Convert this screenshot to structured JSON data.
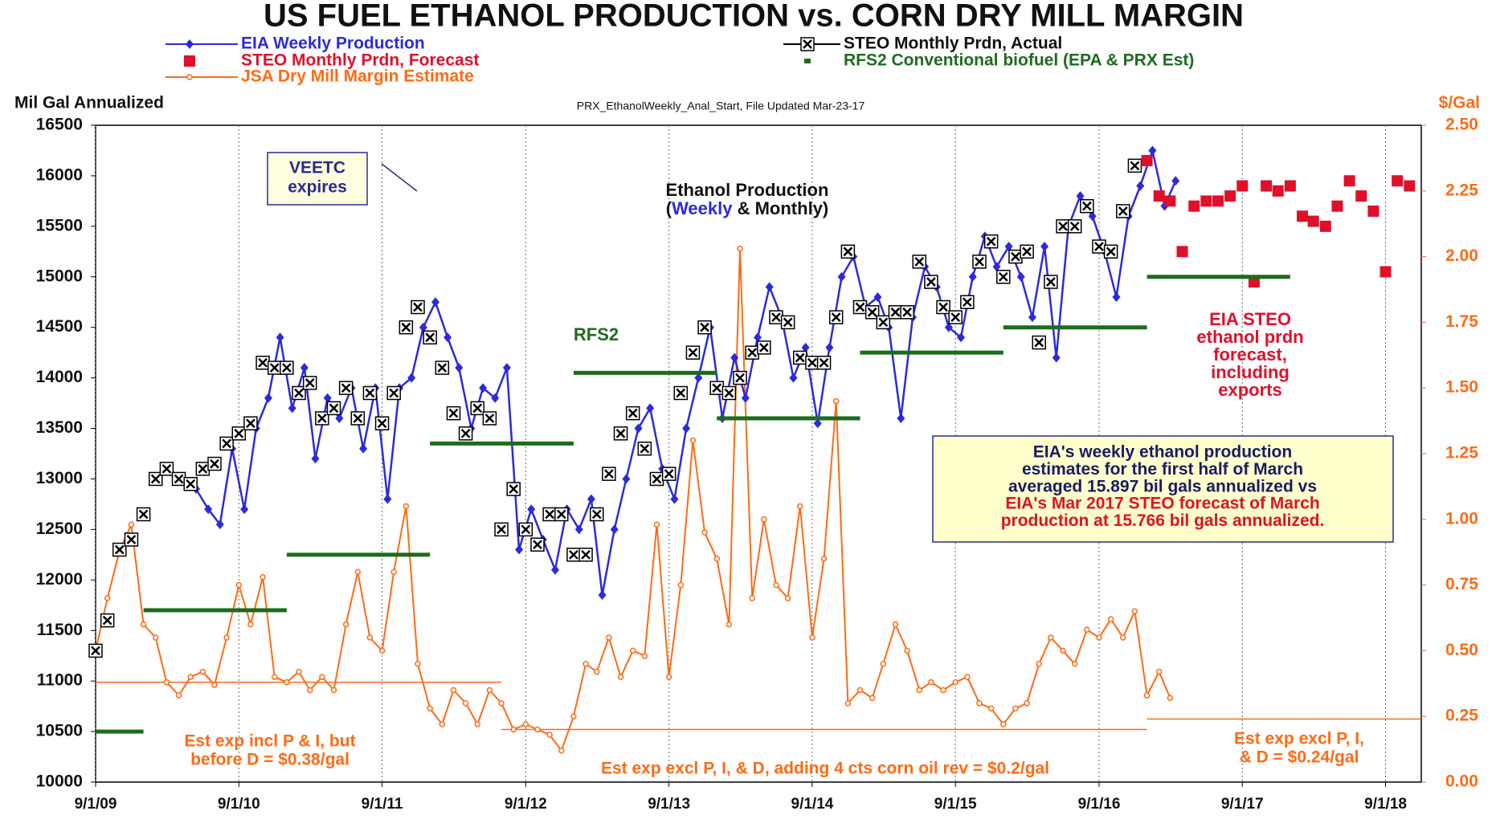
{
  "chart_data": {
    "type": "line",
    "title": "US FUEL ETHANOL PRODUCTION vs. CORN DRY MILL MARGIN",
    "subtitle": "PRX_EthanolWeekly_Anal_Start, File Updated Mar-23-17",
    "y_label": "Mil Gal Annualized",
    "y2_label": "$/Gal",
    "legend": "top",
    "grid": "x",
    "xlim": [
      "2009-09-01",
      "2018-12-01"
    ],
    "xticks": [
      {
        "value": "2009-09-01",
        "label": "9/1/09"
      },
      {
        "value": "2010-09-01",
        "label": "9/1/10"
      },
      {
        "value": "2011-09-01",
        "label": "9/1/11"
      },
      {
        "value": "2012-09-01",
        "label": "9/1/12"
      },
      {
        "value": "2013-09-01",
        "label": "9/1/13"
      },
      {
        "value": "2014-09-01",
        "label": "9/1/14"
      },
      {
        "value": "2015-09-01",
        "label": "9/1/15"
      },
      {
        "value": "2016-09-01",
        "label": "9/1/16"
      },
      {
        "value": "2017-09-01",
        "label": "9/1/17"
      },
      {
        "value": "2018-09-01",
        "label": "9/1/18"
      }
    ],
    "ylim": [
      10000,
      16500
    ],
    "yticks": [
      10000,
      10500,
      11000,
      11500,
      12000,
      12500,
      13000,
      13500,
      14000,
      14500,
      15000,
      15500,
      16000,
      16500
    ],
    "y2lim": [
      0,
      2.5
    ],
    "y2ticks": [
      {
        "value": 0,
        "label": "0.00"
      },
      0.25,
      {
        "value": 0.5,
        "label": "0.50"
      },
      0.75,
      {
        "value": 1,
        "label": "1.00"
      },
      1.25,
      {
        "value": 1.5,
        "label": "1.50"
      },
      1.75,
      {
        "value": 2,
        "label": "2.00"
      },
      2.25,
      {
        "value": 2.5,
        "label": "2.50"
      }
    ],
    "y2_color": "#ff6a13",
    "series": [
      {
        "name": "EIA Weekly Production",
        "color": "#2b2bd9",
        "marker": "diamond",
        "line": true,
        "x": [
          "2010-05-15",
          "2010-06-15",
          "2010-07-15",
          "2010-08-15",
          "2010-09-15",
          "2010-10-15",
          "2010-11-15",
          "2010-12-15",
          "2011-01-15",
          "2011-02-15",
          "2011-03-15",
          "2011-04-15",
          "2011-05-15",
          "2011-06-15",
          "2011-07-15",
          "2011-08-15",
          "2011-09-15",
          "2011-10-15",
          "2011-11-15",
          "2011-12-15",
          "2012-01-15",
          "2012-02-15",
          "2012-03-15",
          "2012-04-15",
          "2012-05-15",
          "2012-06-15",
          "2012-07-15",
          "2012-08-15",
          "2012-09-15",
          "2012-10-15",
          "2012-11-15",
          "2012-12-15",
          "2013-01-15",
          "2013-02-15",
          "2013-03-15",
          "2013-04-15",
          "2013-05-15",
          "2013-06-15",
          "2013-07-15",
          "2013-08-15",
          "2013-09-15",
          "2013-10-15",
          "2013-11-15",
          "2013-12-15",
          "2014-01-15",
          "2014-02-15",
          "2014-03-15",
          "2014-04-15",
          "2014-05-15",
          "2014-06-15",
          "2014-07-15",
          "2014-08-15",
          "2014-09-15",
          "2014-10-15",
          "2014-11-15",
          "2014-12-15",
          "2015-01-15",
          "2015-02-15",
          "2015-03-15",
          "2015-04-15",
          "2015-05-15",
          "2015-06-15",
          "2015-07-15",
          "2015-08-15",
          "2015-09-15",
          "2015-10-15",
          "2015-11-15",
          "2015-12-15",
          "2016-01-15",
          "2016-02-15",
          "2016-03-15",
          "2016-04-15",
          "2016-05-15",
          "2016-06-15",
          "2016-07-15",
          "2016-08-15",
          "2016-09-15",
          "2016-10-15",
          "2016-11-15",
          "2016-12-15",
          "2017-01-15",
          "2017-02-15",
          "2017-03-15"
        ],
        "values": [
          12900,
          12700,
          12550,
          13300,
          12700,
          13500,
          13800,
          14400,
          13700,
          14100,
          13200,
          13800,
          13600,
          13900,
          13300,
          13900,
          12800,
          13900,
          14000,
          14500,
          14750,
          14400,
          14100,
          13500,
          13900,
          13800,
          14100,
          12300,
          12700,
          12400,
          12100,
          12700,
          12500,
          12800,
          11850,
          12500,
          13000,
          13500,
          13700,
          13100,
          12800,
          13500,
          14000,
          14500,
          13600,
          14200,
          13800,
          14400,
          14900,
          14600,
          14000,
          14300,
          13550,
          14300,
          15000,
          15200,
          14700,
          14800,
          14500,
          13600,
          14600,
          15100,
          14900,
          14500,
          14400,
          15000,
          15400,
          15100,
          15300,
          15000,
          14600,
          15300,
          14200,
          15500,
          15800,
          15600,
          15250,
          14800,
          15600,
          15900,
          16250,
          15700,
          15950
        ]
      },
      {
        "name": "STEO Monthly Prdn, Actual",
        "color": "#000000",
        "marker": "xbox",
        "line": false,
        "x": [
          "2009-09-01",
          "2009-10-01",
          "2009-11-01",
          "2009-12-01",
          "2010-01-01",
          "2010-02-01",
          "2010-03-01",
          "2010-04-01",
          "2010-05-01",
          "2010-06-01",
          "2010-07-01",
          "2010-08-01",
          "2010-09-01",
          "2010-10-01",
          "2010-11-01",
          "2010-12-01",
          "2011-01-01",
          "2011-02-01",
          "2011-03-01",
          "2011-04-01",
          "2011-05-01",
          "2011-06-01",
          "2011-07-01",
          "2011-08-01",
          "2011-09-01",
          "2011-10-01",
          "2011-11-01",
          "2011-12-01",
          "2012-01-01",
          "2012-02-01",
          "2012-03-01",
          "2012-04-01",
          "2012-05-01",
          "2012-06-01",
          "2012-07-01",
          "2012-08-01",
          "2012-09-01",
          "2012-10-01",
          "2012-11-01",
          "2012-12-01",
          "2013-01-01",
          "2013-02-01",
          "2013-03-01",
          "2013-04-01",
          "2013-05-01",
          "2013-06-01",
          "2013-07-01",
          "2013-08-01",
          "2013-09-01",
          "2013-10-01",
          "2013-11-01",
          "2013-12-01",
          "2014-01-01",
          "2014-02-01",
          "2014-03-01",
          "2014-04-01",
          "2014-05-01",
          "2014-06-01",
          "2014-07-01",
          "2014-08-01",
          "2014-09-01",
          "2014-10-01",
          "2014-11-01",
          "2014-12-01",
          "2015-01-01",
          "2015-02-01",
          "2015-03-01",
          "2015-04-01",
          "2015-05-01",
          "2015-06-01",
          "2015-07-01",
          "2015-08-01",
          "2015-09-01",
          "2015-10-01",
          "2015-11-01",
          "2015-12-01",
          "2016-01-01",
          "2016-02-01",
          "2016-03-01",
          "2016-04-01",
          "2016-05-01",
          "2016-06-01",
          "2016-07-01",
          "2016-08-01",
          "2016-09-01",
          "2016-10-01",
          "2016-11-01",
          "2016-12-01"
        ],
        "values": [
          11300,
          11600,
          12300,
          12400,
          12650,
          13000,
          13100,
          13000,
          12950,
          13100,
          13150,
          13350,
          13450,
          13550,
          14150,
          14100,
          14100,
          13850,
          13950,
          13600,
          13700,
          13900,
          13600,
          13850,
          13550,
          13850,
          14500,
          14700,
          14400,
          14100,
          13650,
          13450,
          13700,
          13600,
          12500,
          12900,
          12500,
          12350,
          12650,
          12650,
          12250,
          12250,
          12650,
          13050,
          13450,
          13650,
          13300,
          13000,
          13050,
          13850,
          14250,
          14500,
          13900,
          13850,
          14000,
          14250,
          14300,
          14600,
          14550,
          14200,
          14150,
          14150,
          14600,
          15250,
          14700,
          14650,
          14550,
          14650,
          14650,
          15150,
          14950,
          14700,
          14600,
          14750,
          15150,
          15350,
          15000,
          15200,
          15250,
          14350,
          14950,
          15500,
          15500,
          15700,
          15300,
          15250,
          15650,
          16100
        ]
      },
      {
        "name": "STEO Monthly Prdn, Forecast",
        "color": "#e0102a",
        "marker": "square",
        "line": false,
        "x": [
          "2017-01-01",
          "2017-02-01",
          "2017-03-01",
          "2017-04-01",
          "2017-05-01",
          "2017-06-01",
          "2017-07-01",
          "2017-08-01",
          "2017-09-01",
          "2017-10-01",
          "2017-11-01",
          "2017-12-01",
          "2018-01-01",
          "2018-02-01",
          "2018-03-01",
          "2018-04-01",
          "2018-05-01",
          "2018-06-01",
          "2018-07-01",
          "2018-08-01",
          "2018-09-01",
          "2018-10-01",
          "2018-11-01"
        ],
        "values": [
          16150,
          15800,
          15750,
          15250,
          15700,
          15750,
          15750,
          15800,
          15900,
          14950,
          15900,
          15850,
          15900,
          15600,
          15550,
          15500,
          15700,
          15950,
          15800,
          15650,
          15050,
          15950,
          15900
        ]
      },
      {
        "name": "RFS2 Conventional biofuel (EPA & PRX Est)",
        "color": "#1e6b1e",
        "marker": "segment",
        "line": false,
        "x": [
          "2009-09-01",
          "2010-01-01",
          "2011-01-01",
          "2012-01-01",
          "2013-01-01",
          "2014-01-01",
          "2015-01-01",
          "2016-01-01",
          "2017-01-01"
        ],
        "x_end": [
          "2010-01-01",
          "2011-01-01",
          "2012-01-01",
          "2013-01-01",
          "2014-01-01",
          "2015-01-01",
          "2016-01-01",
          "2017-01-01",
          "2018-01-01"
        ],
        "values": [
          10500,
          11700,
          12250,
          13350,
          14050,
          13600,
          14250,
          14500,
          15000
        ]
      },
      {
        "name": "JSA Dry Mill Margin Estimate",
        "color": "#ff6a13",
        "marker": "circle",
        "line": true,
        "axis": "y2",
        "x": [
          "2009-09-01",
          "2009-10-01",
          "2009-11-01",
          "2009-12-01",
          "2010-01-01",
          "2010-02-01",
          "2010-03-01",
          "2010-04-01",
          "2010-05-01",
          "2010-06-01",
          "2010-07-01",
          "2010-08-01",
          "2010-09-01",
          "2010-10-01",
          "2010-11-01",
          "2010-12-01",
          "2011-01-01",
          "2011-02-01",
          "2011-03-01",
          "2011-04-01",
          "2011-05-01",
          "2011-06-01",
          "2011-07-01",
          "2011-08-01",
          "2011-09-01",
          "2011-10-01",
          "2011-11-01",
          "2011-12-01",
          "2012-01-01",
          "2012-02-01",
          "2012-03-01",
          "2012-04-01",
          "2012-05-01",
          "2012-06-01",
          "2012-07-01",
          "2012-08-01",
          "2012-09-01",
          "2012-10-01",
          "2012-11-01",
          "2012-12-01",
          "2013-01-01",
          "2013-02-01",
          "2013-03-01",
          "2013-04-01",
          "2013-05-01",
          "2013-06-01",
          "2013-07-01",
          "2013-08-01",
          "2013-09-01",
          "2013-10-01",
          "2013-11-01",
          "2013-12-01",
          "2014-01-01",
          "2014-02-01",
          "2014-03-01",
          "2014-04-01",
          "2014-05-01",
          "2014-06-01",
          "2014-07-01",
          "2014-08-01",
          "2014-09-01",
          "2014-10-01",
          "2014-11-01",
          "2014-12-01",
          "2015-01-01",
          "2015-02-01",
          "2015-03-01",
          "2015-04-01",
          "2015-05-01",
          "2015-06-01",
          "2015-07-01",
          "2015-08-01",
          "2015-09-01",
          "2015-10-01",
          "2015-11-01",
          "2015-12-01",
          "2016-01-01",
          "2016-02-01",
          "2016-03-01",
          "2016-04-01",
          "2016-05-01",
          "2016-06-01",
          "2016-07-01",
          "2016-08-01",
          "2016-09-01",
          "2016-10-01",
          "2016-11-01",
          "2016-12-01",
          "2017-01-01",
          "2017-02-01",
          "2017-03-01"
        ],
        "values": [
          0.5,
          0.7,
          0.88,
          0.98,
          0.6,
          0.55,
          0.38,
          0.33,
          0.4,
          0.42,
          0.37,
          0.55,
          0.75,
          0.6,
          0.78,
          0.4,
          0.38,
          0.42,
          0.35,
          0.4,
          0.35,
          0.6,
          0.8,
          0.55,
          0.5,
          0.8,
          1.05,
          0.45,
          0.28,
          0.22,
          0.35,
          0.3,
          0.22,
          0.35,
          0.3,
          0.2,
          0.22,
          0.2,
          0.18,
          0.12,
          0.25,
          0.45,
          0.42,
          0.55,
          0.4,
          0.5,
          0.48,
          0.98,
          0.4,
          0.75,
          1.3,
          0.95,
          0.85,
          0.6,
          2.03,
          0.7,
          1.0,
          0.75,
          0.7,
          1.05,
          0.55,
          0.85,
          1.45,
          0.3,
          0.35,
          0.32,
          0.45,
          0.6,
          0.5,
          0.35,
          0.38,
          0.35,
          0.38,
          0.4,
          0.3,
          0.28,
          0.22,
          0.28,
          0.3,
          0.45,
          0.55,
          0.5,
          0.45,
          0.58,
          0.55,
          0.62,
          0.55,
          0.65,
          0.33,
          0.42,
          0.32
        ]
      }
    ],
    "cost_lines": [
      {
        "lines": [
          "Est exp incl P & I, but",
          "before D = $0.38/gal"
        ],
        "value": 0.38,
        "start": "2009-09-01",
        "end": "2012-07-01"
      },
      {
        "lines": [
          "Est exp excl P, I, & D, adding 4 cts corn oil rev = $0.2/gal"
        ],
        "value": 0.2,
        "start": "2012-07-01",
        "end": "2017-01-01"
      },
      {
        "lines": [
          "Est exp excl P, I,",
          "& D = $0.24/gal"
        ],
        "value": 0.24,
        "start": "2017-01-01",
        "end": "2018-12-01"
      }
    ],
    "annotations": {
      "veetc": [
        "VEETC",
        "expires"
      ],
      "production_label": {
        "line1": "Ethanol Production",
        "line2": [
          "(",
          "Weekly",
          " & Monthly)"
        ]
      },
      "rfs2": "RFS2",
      "steo_note": [
        "EIA STEO",
        "ethanol prdn",
        "forecast,",
        "including",
        "exports"
      ],
      "info_box": {
        "lines": [
          "EIA's weekly ethanol production",
          "estimates for the first half of March",
          "averaged 15.897 bil gals annualized vs"
        ],
        "red_lines": [
          "EIA's Mar 2017 STEO forecast of March",
          "production at 15.766 bil gals annualized."
        ]
      }
    }
  }
}
